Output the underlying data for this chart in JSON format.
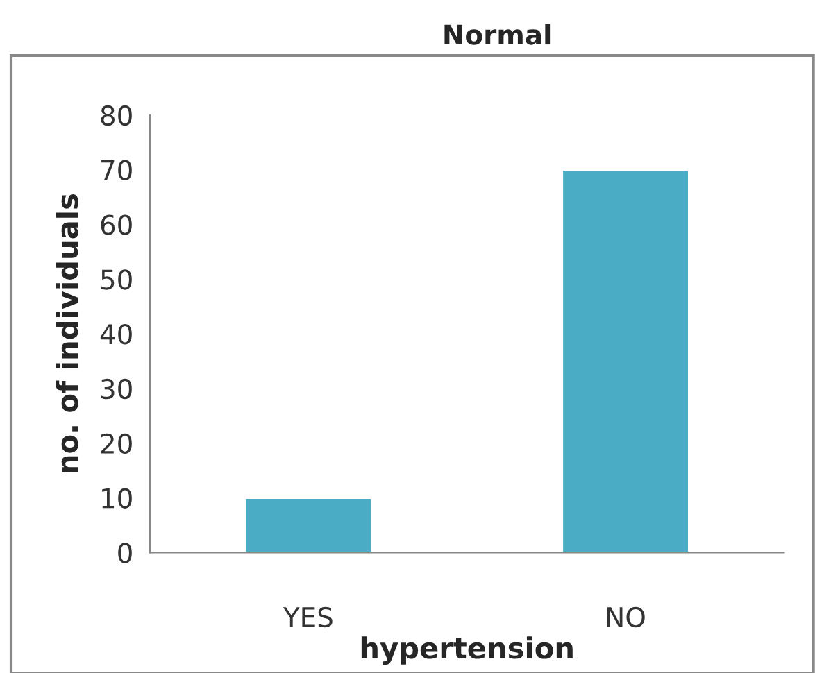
{
  "chart_data": {
    "type": "bar",
    "title": "Normal",
    "xlabel": "hypertension",
    "ylabel": "no. of individuals",
    "categories": [
      "YES",
      "NO"
    ],
    "series": [
      {
        "color": "#4bacc6",
        "values": [
          10,
          70
        ]
      }
    ],
    "ylim": [
      0,
      80
    ],
    "yticks": [
      0,
      10,
      20,
      30,
      40,
      50,
      60,
      70,
      80
    ],
    "grid": false,
    "legend": false
  }
}
